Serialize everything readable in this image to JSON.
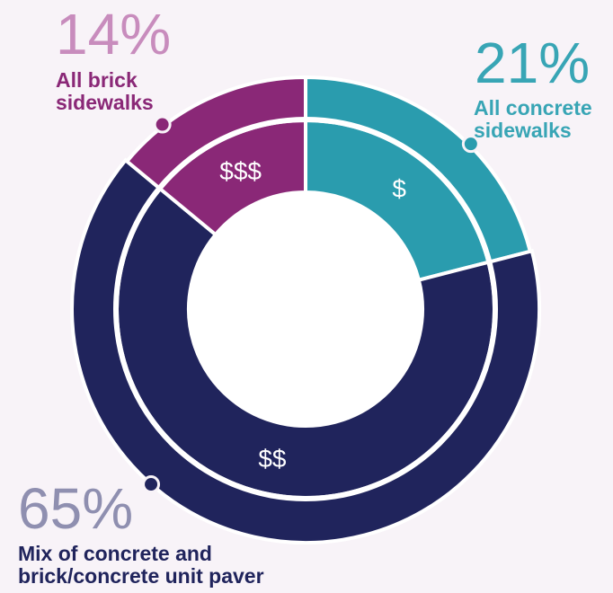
{
  "chart_data": {
    "type": "pie",
    "variant": "donut-with-outer-ring",
    "series": [
      {
        "key": "concrete",
        "percent_label": "21%",
        "value": 21,
        "label_line1": "All concrete",
        "label_line2": "sidewalks",
        "cost_label": "$",
        "color": "#2a9cae",
        "text_color": "#38a5b5"
      },
      {
        "key": "mix",
        "percent_label": "65%",
        "value": 65,
        "label_line1": "Mix of concrete and",
        "label_line2": "brick/concrete unit paver",
        "cost_label": "$$",
        "color": "#20245c",
        "text_color": "#20245c",
        "percent_color": "#8f8fb0"
      },
      {
        "key": "brick",
        "percent_label": "14%",
        "value": 14,
        "label_line1": "All brick",
        "label_line2": "sidewalks",
        "cost_label": "$$$",
        "color": "#8a2877",
        "text_color": "#8a2877",
        "percent_color": "#c88cbd"
      }
    ],
    "background": "#f8f3f8"
  }
}
